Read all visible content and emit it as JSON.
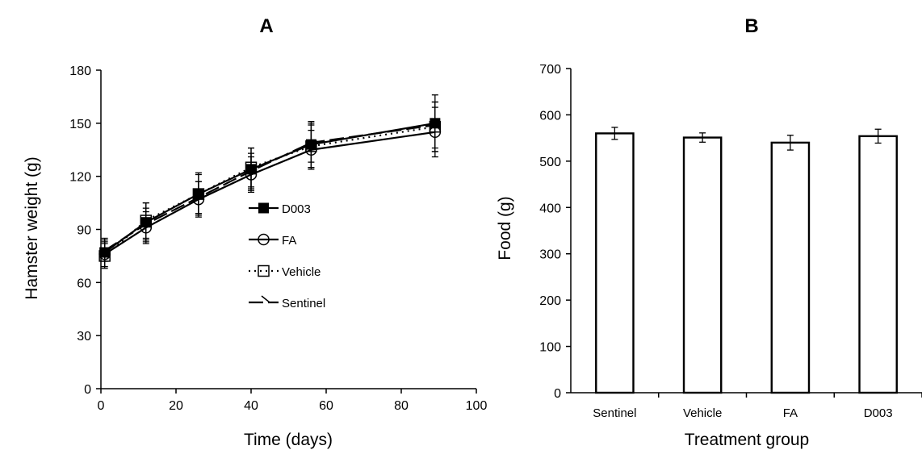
{
  "chart_data": [
    {
      "panel_label": "A",
      "type": "line",
      "xlabel": "Time (days)",
      "ylabel": "Hamster weight (g)",
      "xlim": [
        0,
        100
      ],
      "ylim": [
        0,
        180
      ],
      "xticks": [
        0,
        20,
        40,
        60,
        80,
        100
      ],
      "yticks": [
        0,
        30,
        60,
        90,
        120,
        150,
        180
      ],
      "grid": false,
      "legend_position": "center-right",
      "x": [
        1,
        12,
        26,
        40,
        56,
        89
      ],
      "series": [
        {
          "name": "D003",
          "marker": "filled-square",
          "line": "solid",
          "values": [
            77,
            94,
            110,
            124,
            138,
            150
          ],
          "errors": [
            8,
            11,
            12,
            12,
            13,
            16
          ]
        },
        {
          "name": "FA",
          "marker": "open-circle",
          "line": "solid",
          "values": [
            76,
            91,
            107,
            121,
            135,
            145
          ],
          "errors": [
            7,
            9,
            10,
            10,
            11,
            14
          ]
        },
        {
          "name": "Vehicle",
          "marker": "open-square",
          "line": "dotted",
          "values": [
            75,
            95,
            110,
            125,
            137,
            148
          ],
          "errors": [
            7,
            10,
            11,
            11,
            12,
            14
          ]
        },
        {
          "name": "Sentinel",
          "marker": "none",
          "line": "dashed",
          "values": [
            78,
            93,
            108,
            123,
            139,
            149
          ],
          "errors": [
            6,
            9,
            9,
            10,
            11,
            13
          ]
        }
      ]
    },
    {
      "panel_label": "B",
      "type": "bar",
      "xlabel": "Treatment group",
      "ylabel": "Food (g)",
      "ylim": [
        0,
        700
      ],
      "yticks": [
        0,
        100,
        200,
        300,
        400,
        500,
        600,
        700
      ],
      "grid": false,
      "categories": [
        "Sentinel",
        "Vehicle",
        "FA",
        "D003"
      ],
      "values": [
        560,
        551,
        540,
        554
      ],
      "errors": [
        13,
        10,
        16,
        15
      ]
    }
  ]
}
